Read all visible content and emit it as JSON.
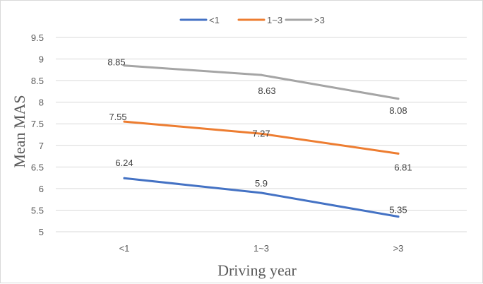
{
  "chart_data": {
    "type": "line",
    "title": "",
    "xlabel": "Driving year",
    "ylabel": "Mean MAS",
    "categories": [
      "<1",
      "1~3",
      ">3"
    ],
    "ylim": [
      5,
      9.5
    ],
    "yticks": [
      "5",
      "5.5",
      "6",
      "6.5",
      "7",
      "7.5",
      "8",
      "8.5",
      "9",
      "9.5"
    ],
    "ytick_values": [
      5,
      5.5,
      6,
      6.5,
      7,
      7.5,
      8,
      8.5,
      9,
      9.5
    ],
    "grid": true,
    "legend_position": "top-center",
    "series": [
      {
        "name": "<1",
        "color": "#4472c4",
        "values": [
          6.24,
          5.9,
          5.35
        ],
        "labels": [
          "6.24",
          "5.9",
          "5.35"
        ]
      },
      {
        "name": "1~3",
        "color": "#ed7d31",
        "values": [
          7.55,
          7.27,
          6.81
        ],
        "labels": [
          "7.55",
          "7.27",
          "6.81"
        ]
      },
      {
        "name": ">3",
        "color": "#a5a5a5",
        "values": [
          8.85,
          8.63,
          8.08
        ],
        "labels": [
          "8.85",
          "8.63",
          "8.08"
        ]
      }
    ]
  }
}
